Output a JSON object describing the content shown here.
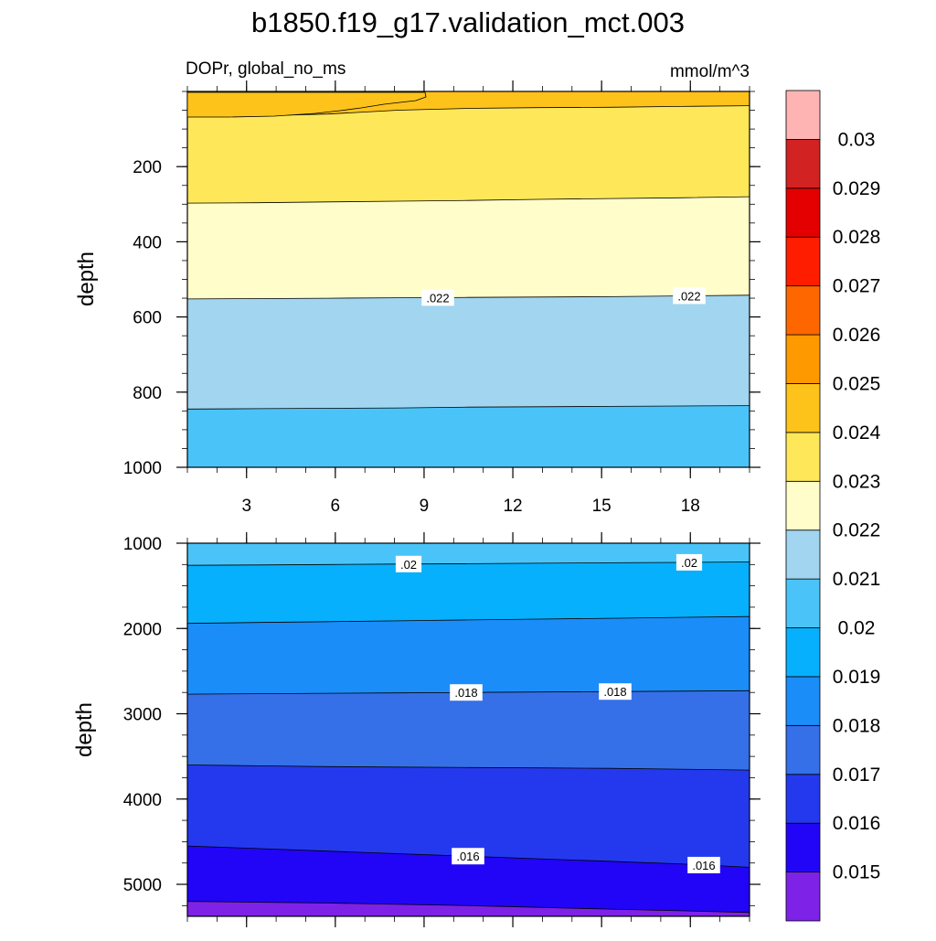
{
  "chart_data": {
    "type": "contour",
    "title": "b1850.f19_g17.validation_mct.003",
    "variable_label": "DOPr, global_no_ms",
    "units_label": "mmol/m^3",
    "upper_panel": {
      "ylabel": "depth",
      "ylim": [
        0,
        1000
      ],
      "y_ticks": [
        "200",
        "400",
        "600",
        "800",
        "1000"
      ],
      "x_ticks": [
        "3",
        "6",
        "9",
        "12",
        "15",
        "18"
      ],
      "xlim": [
        1,
        20
      ],
      "contour_lines": [
        {
          "value": 0.024,
          "depths_left_to_right": [
            65,
            65,
            60,
            50,
            45,
            43,
            42,
            40,
            38
          ]
        },
        {
          "value": 0.023,
          "depths_left_to_right": [
            297,
            296,
            294,
            292,
            290,
            287,
            285,
            283,
            280
          ]
        },
        {
          "value": 0.022,
          "label": ".022",
          "depths_left_to_right": [
            552,
            551,
            550,
            549,
            548,
            547,
            546,
            544,
            542
          ]
        },
        {
          "value": 0.021,
          "depths_left_to_right": [
            845,
            844,
            843,
            842,
            840,
            839,
            838,
            837,
            836
          ]
        }
      ],
      "contour_labels": [
        ".022",
        ".022"
      ]
    },
    "lower_panel": {
      "ylabel": "depth",
      "ylim": [
        1000,
        5375
      ],
      "y_ticks": [
        "1000",
        "2000",
        "3000",
        "4000",
        "5000"
      ],
      "xlim": [
        1,
        20
      ],
      "contour_lines": [
        {
          "value": 0.02,
          "label": ".02",
          "depths_left_to_right": [
            1260,
            1255,
            1250,
            1245,
            1240,
            1235,
            1230,
            1225,
            1220
          ]
        },
        {
          "value": 0.019,
          "depths_left_to_right": [
            1940,
            1930,
            1920,
            1910,
            1900,
            1890,
            1880,
            1870,
            1860
          ]
        },
        {
          "value": 0.018,
          "label": ".018",
          "depths_left_to_right": [
            2770,
            2765,
            2760,
            2755,
            2750,
            2745,
            2740,
            2735,
            2730
          ]
        },
        {
          "value": 0.017,
          "depths_left_to_right": [
            3600,
            3610,
            3620,
            3625,
            3630,
            3635,
            3640,
            3650,
            3660
          ]
        },
        {
          "value": 0.016,
          "label": ".016",
          "depths_left_to_right": [
            4550,
            4580,
            4610,
            4640,
            4670,
            4700,
            4730,
            4760,
            4800
          ]
        },
        {
          "value": 0.015,
          "depths_left_to_right": [
            5200,
            5210,
            5220,
            5235,
            5250,
            5270,
            5290,
            5310,
            5330
          ]
        }
      ],
      "contour_labels": [
        ".02",
        ".02",
        ".018",
        ".018",
        ".016",
        ".016"
      ]
    },
    "colorbar": {
      "levels": [
        "0.015",
        "0.016",
        "0.017",
        "0.018",
        "0.019",
        "0.02",
        "0.021",
        "0.022",
        "0.023",
        "0.024",
        "0.025",
        "0.026",
        "0.027",
        "0.028",
        "0.029",
        "0.03"
      ],
      "colors_bottom_to_top": [
        "#7f22e8",
        "#2205f6",
        "#2439ee",
        "#3570e8",
        "#1a8df8",
        "#06b0fd",
        "#4ac4f8",
        "#a1d5f0",
        "#fffecb",
        "#fee85a",
        "#fec31b",
        "#fe9a00",
        "#fe6700",
        "#ff1d00",
        "#e40000",
        "#d22222",
        "#ffb4b4"
      ]
    }
  }
}
